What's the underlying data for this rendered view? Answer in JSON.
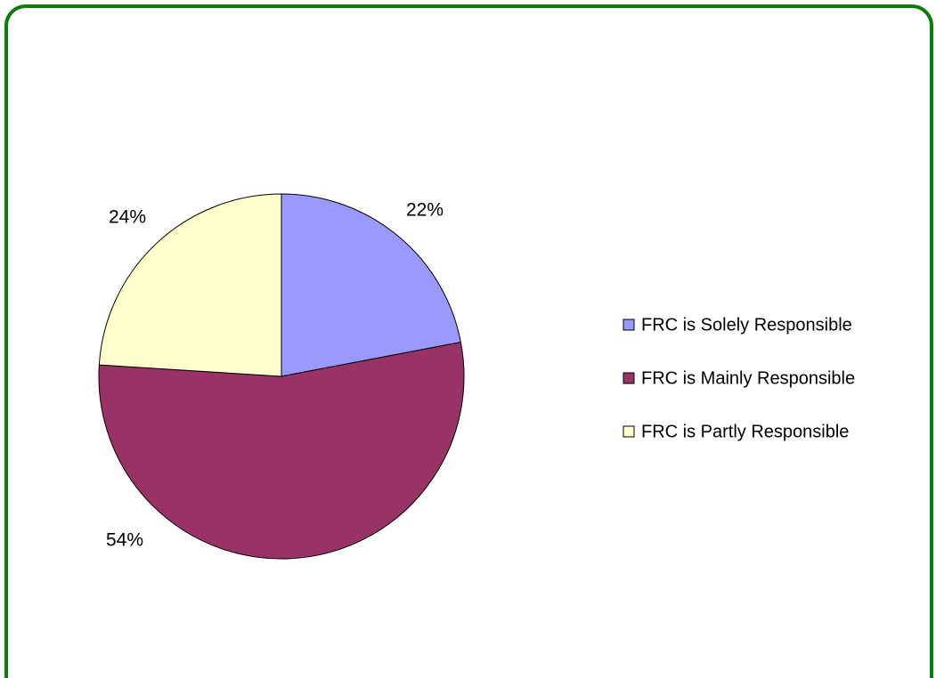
{
  "chart_data": {
    "type": "pie",
    "categories": [
      "FRC is Solely Responsible",
      "FRC is Mainly Responsible",
      "FRC is Partly Responsible"
    ],
    "values": [
      22,
      54,
      24
    ],
    "value_labels": [
      "22%",
      "54%",
      "24%"
    ],
    "colors": [
      "#9999ff",
      "#993366",
      "#ffffcc"
    ],
    "legend": "right"
  }
}
